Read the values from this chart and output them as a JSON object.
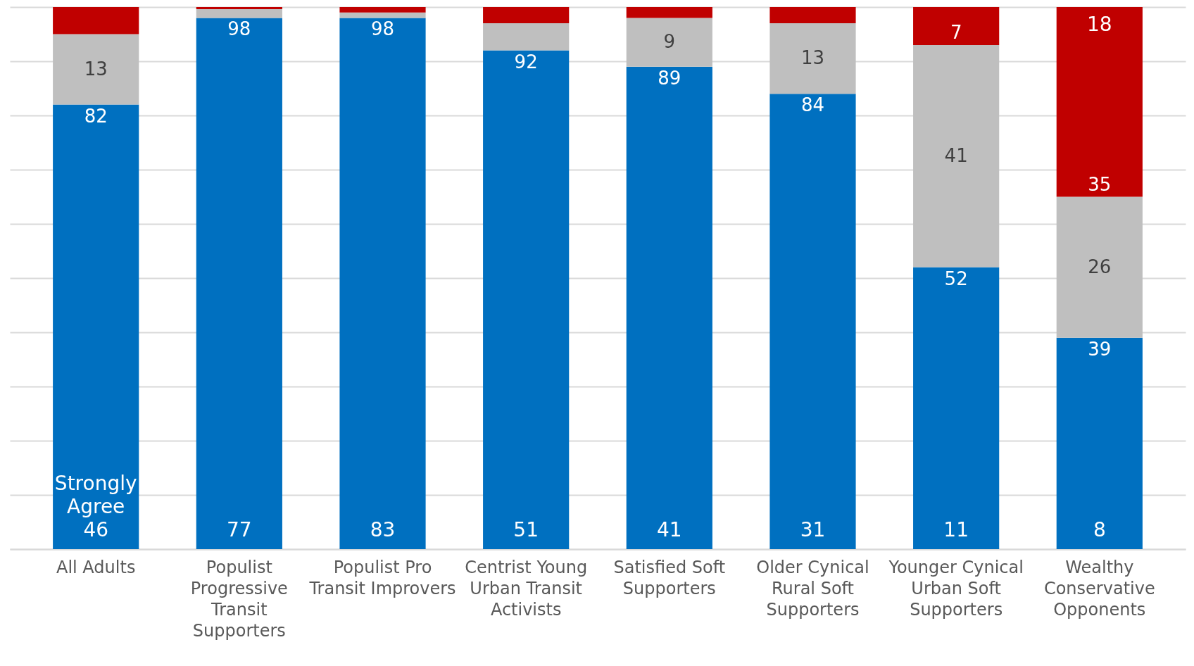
{
  "chart_data": {
    "type": "bar",
    "stacked": true,
    "categories": [
      "All Adults",
      "Populist Progressive Transit Supporters",
      "Populist Pro Transit Improvers",
      "Centrist Young Urban Transit Activists",
      "Satisfied Soft Supporters",
      "Older Cynical Rural Soft Supporters",
      "Younger Cynical Urban Soft Supporters",
      "Wealthy Conservative Opponents"
    ],
    "series": [
      {
        "color": "#0070c0",
        "values": [
          82,
          98,
          98,
          92,
          89,
          84,
          52,
          39
        ],
        "value_labels": [
          "82",
          "98",
          "98",
          "92",
          "89",
          "84",
          "52",
          "39"
        ]
      },
      {
        "color": "#bfbfbf",
        "values": [
          13,
          1.6,
          1,
          5,
          9,
          13,
          41,
          26
        ],
        "value_labels": [
          "13",
          null,
          null,
          null,
          "9",
          "13",
          "41",
          "26"
        ]
      },
      {
        "color": "#c00000",
        "values": [
          5,
          0.4,
          1,
          3,
          2,
          3,
          7,
          35
        ],
        "value_labels": [
          null,
          null,
          null,
          null,
          null,
          null,
          "7",
          "35"
        ]
      }
    ],
    "ylim": [
      0,
      100
    ],
    "yticks": [
      {
        "value": 0,
        "label": null
      },
      {
        "value": 10,
        "label": null
      },
      {
        "value": 20,
        "label": null
      },
      {
        "value": 30,
        "label": null
      },
      {
        "value": 40,
        "label": null
      },
      {
        "value": 50,
        "label": null
      },
      {
        "value": 60,
        "label": null
      },
      {
        "value": 70,
        "label": null
      },
      {
        "value": 80,
        "label": null
      },
      {
        "value": 90,
        "label": null
      },
      {
        "value": 100,
        "label": null
      }
    ],
    "tick_labels": "x",
    "grid": "y",
    "legend": false,
    "annotations": [
      {
        "text": "Strongly Agree",
        "x": "All Adults",
        "y": 0
      },
      {
        "text": "46",
        "x": "All Adults",
        "y": 0
      },
      {
        "text": "77",
        "x": "Populist Progressive Transit Supporters",
        "y": 0
      },
      {
        "text": "83",
        "x": "Populist Pro Transit Improvers",
        "y": 0
      },
      {
        "text": "51",
        "x": "Centrist Young Urban Transit Activists",
        "y": 0
      },
      {
        "text": "41",
        "x": "Satisfied Soft Supporters",
        "y": 0
      },
      {
        "text": "31",
        "x": "Older Cynical Rural Soft Supporters",
        "y": 0
      },
      {
        "text": "11",
        "x": "Younger Cynical Urban Soft Supporters",
        "y": 0
      },
      {
        "text": "8",
        "x": "Wealthy Conservative Opponents",
        "y": 0
      },
      {
        "text": "18",
        "x": "Wealthy Conservative Opponents",
        "y": 100
      }
    ]
  }
}
